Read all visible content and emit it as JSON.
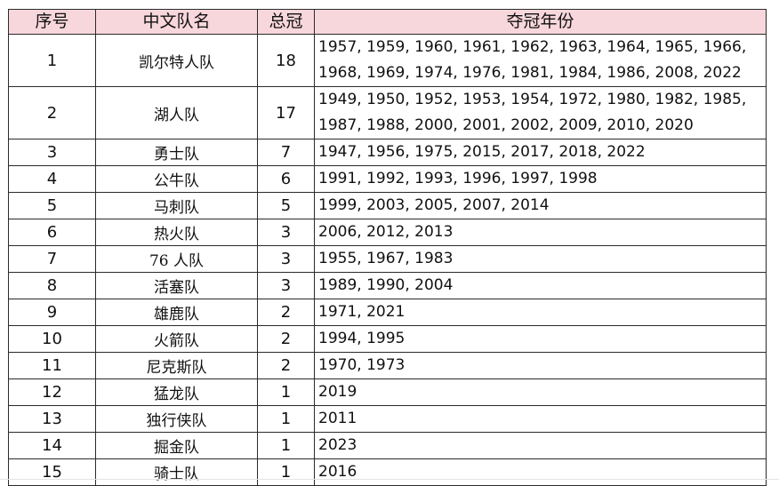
{
  "headers": {
    "index": "序号",
    "name": "中文队名",
    "total": "总冠",
    "years": "夺冠年份"
  },
  "rows": [
    {
      "index": "1",
      "name": "凯尔特人队",
      "total": "18",
      "years": "1957, 1959, 1960, 1961, 1962, 1963, 1964, 1965, 1966, 1968, 1969, 1974, 1976, 1981, 1984, 1986, 2008, 2022"
    },
    {
      "index": "2",
      "name": "湖人队",
      "total": "17",
      "years": "1949, 1950, 1952, 1953, 1954, 1972, 1980, 1982, 1985, 1987, 1988, 2000, 2001, 2002, 2009, 2010, 2020"
    },
    {
      "index": "3",
      "name": "勇士队",
      "total": "7",
      "years": "1947, 1956, 1975, 2015, 2017, 2018, 2022"
    },
    {
      "index": "4",
      "name": "公牛队",
      "total": "6",
      "years": "1991, 1992, 1993, 1996, 1997, 1998"
    },
    {
      "index": "5",
      "name": "马刺队",
      "total": "5",
      "years": "1999, 2003, 2005, 2007, 2014"
    },
    {
      "index": "6",
      "name": "热火队",
      "total": "3",
      "years": "2006, 2012, 2013"
    },
    {
      "index": "7",
      "name": "76 人队",
      "total": "3",
      "years": "1955, 1967, 1983"
    },
    {
      "index": "8",
      "name": "活塞队",
      "total": "3",
      "years": "1989, 1990, 2004"
    },
    {
      "index": "9",
      "name": "雄鹿队",
      "total": "2",
      "years": "1971, 2021"
    },
    {
      "index": "10",
      "name": "火箭队",
      "total": "2",
      "years": "1994, 1995"
    },
    {
      "index": "11",
      "name": "尼克斯队",
      "total": "2",
      "years": "1970, 1973"
    },
    {
      "index": "12",
      "name": "猛龙队",
      "total": "1",
      "years": "2019"
    },
    {
      "index": "13",
      "name": "独行侠队",
      "total": "1",
      "years": "2011"
    },
    {
      "index": "14",
      "name": "掘金队",
      "total": "1",
      "years": "2023"
    },
    {
      "index": "15",
      "name": "骑士队",
      "total": "1",
      "years": "2016"
    }
  ],
  "colors": {
    "header_background": "#f8d7dc",
    "border": "#2a2a2a"
  }
}
